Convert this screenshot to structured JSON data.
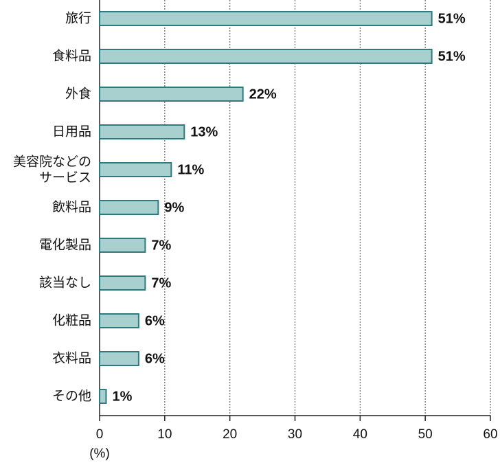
{
  "chart_data": {
    "type": "bar",
    "orientation": "horizontal",
    "categories": [
      "旅行",
      "食料品",
      "外食",
      "日用品",
      "美容院などの\nサービス",
      "飲料品",
      "電化製品",
      "該当なし",
      "化粧品",
      "衣料品",
      "その他"
    ],
    "values": [
      51,
      51,
      22,
      13,
      11,
      9,
      7,
      7,
      6,
      6,
      1
    ],
    "value_labels": [
      "51%",
      "51%",
      "22%",
      "13%",
      "11%",
      "9%",
      "7%",
      "7%",
      "6%",
      "6%",
      "1%"
    ],
    "color": "#a8d0cf",
    "edge_color": "#2f7a7e",
    "xlim": [
      0,
      60
    ],
    "xticks": [
      0,
      10,
      20,
      30,
      40,
      50,
      60
    ],
    "x_label": "(%)",
    "grid": true
  }
}
